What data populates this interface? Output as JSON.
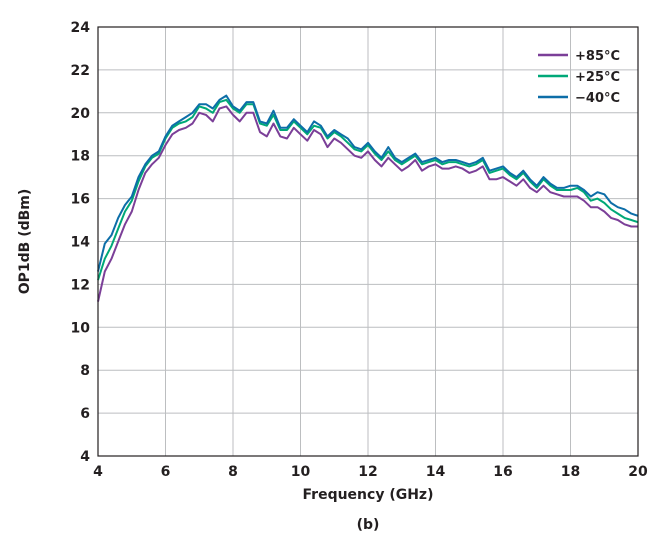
{
  "chart_data": {
    "type": "line",
    "title": "",
    "xlabel": "Frequency (GHz)",
    "ylabel": "OP1dB (dBm)",
    "caption": "(b)",
    "xlim": [
      4,
      20
    ],
    "ylim": [
      4,
      24
    ],
    "xticks": [
      "4",
      "6",
      "8",
      "10",
      "12",
      "14",
      "16",
      "18",
      "20"
    ],
    "yticks": [
      "4",
      "6",
      "8",
      "10",
      "12",
      "14",
      "16",
      "18",
      "20",
      "22",
      "24"
    ],
    "grid": true,
    "legend_position": "top-right",
    "series": [
      {
        "name": "+85°C",
        "color": "#7b3f98",
        "x": [
          4.0,
          4.2,
          4.4,
          4.6,
          4.8,
          5.0,
          5.2,
          5.4,
          5.6,
          5.8,
          6.0,
          6.2,
          6.4,
          6.6,
          6.8,
          7.0,
          7.2,
          7.4,
          7.6,
          7.8,
          8.0,
          8.2,
          8.4,
          8.6,
          8.8,
          9.0,
          9.2,
          9.4,
          9.6,
          9.8,
          10.0,
          10.2,
          10.4,
          10.6,
          10.8,
          11.0,
          11.2,
          11.4,
          11.6,
          11.8,
          12.0,
          12.2,
          12.4,
          12.6,
          12.8,
          13.0,
          13.2,
          13.4,
          13.6,
          13.8,
          14.0,
          14.2,
          14.4,
          14.6,
          14.8,
          15.0,
          15.2,
          15.4,
          15.6,
          15.8,
          16.0,
          16.2,
          16.4,
          16.6,
          16.8,
          17.0,
          17.2,
          17.4,
          17.6,
          17.8,
          18.0,
          18.2,
          18.4,
          18.6,
          18.8,
          19.0,
          19.2,
          19.4,
          19.6,
          19.8,
          20.0
        ],
        "values": [
          11.2,
          12.6,
          13.2,
          14.0,
          14.8,
          15.4,
          16.4,
          17.2,
          17.6,
          17.9,
          18.5,
          19.0,
          19.2,
          19.3,
          19.5,
          20.0,
          19.9,
          19.6,
          20.2,
          20.3,
          19.9,
          19.6,
          20.0,
          20.0,
          19.1,
          18.9,
          19.5,
          18.9,
          18.8,
          19.3,
          19.0,
          18.7,
          19.2,
          19.0,
          18.4,
          18.8,
          18.6,
          18.3,
          18.0,
          17.9,
          18.2,
          17.8,
          17.5,
          17.9,
          17.6,
          17.3,
          17.5,
          17.8,
          17.3,
          17.5,
          17.6,
          17.4,
          17.4,
          17.5,
          17.4,
          17.2,
          17.3,
          17.5,
          16.9,
          16.9,
          17.0,
          16.8,
          16.6,
          16.9,
          16.5,
          16.3,
          16.6,
          16.3,
          16.2,
          16.1,
          16.1,
          16.1,
          15.9,
          15.6,
          15.6,
          15.4,
          15.1,
          15.0,
          14.8,
          14.7,
          14.7
        ]
      },
      {
        "name": "+25°C",
        "color": "#00a878",
        "x": [
          4.0,
          4.2,
          4.4,
          4.6,
          4.8,
          5.0,
          5.2,
          5.4,
          5.6,
          5.8,
          6.0,
          6.2,
          6.4,
          6.6,
          6.8,
          7.0,
          7.2,
          7.4,
          7.6,
          7.8,
          8.0,
          8.2,
          8.4,
          8.6,
          8.8,
          9.0,
          9.2,
          9.4,
          9.6,
          9.8,
          10.0,
          10.2,
          10.4,
          10.6,
          10.8,
          11.0,
          11.2,
          11.4,
          11.6,
          11.8,
          12.0,
          12.2,
          12.4,
          12.6,
          12.8,
          13.0,
          13.2,
          13.4,
          13.6,
          13.8,
          14.0,
          14.2,
          14.4,
          14.6,
          14.8,
          15.0,
          15.2,
          15.4,
          15.6,
          15.8,
          16.0,
          16.2,
          16.4,
          16.6,
          16.8,
          17.0,
          17.2,
          17.4,
          17.6,
          17.8,
          18.0,
          18.2,
          18.4,
          18.6,
          18.8,
          19.0,
          19.2,
          19.4,
          19.6,
          19.8,
          20.0
        ],
        "values": [
          12.2,
          13.2,
          13.8,
          14.6,
          15.4,
          15.9,
          16.8,
          17.5,
          17.9,
          18.1,
          18.8,
          19.3,
          19.5,
          19.6,
          19.8,
          20.3,
          20.2,
          20.0,
          20.5,
          20.6,
          20.2,
          20.0,
          20.4,
          20.4,
          19.5,
          19.4,
          19.9,
          19.2,
          19.2,
          19.6,
          19.3,
          19.0,
          19.4,
          19.3,
          18.8,
          19.1,
          18.9,
          18.6,
          18.3,
          18.2,
          18.5,
          18.1,
          17.8,
          18.2,
          17.8,
          17.6,
          17.8,
          18.0,
          17.6,
          17.7,
          17.8,
          17.6,
          17.7,
          17.7,
          17.6,
          17.5,
          17.6,
          17.8,
          17.2,
          17.3,
          17.4,
          17.1,
          16.9,
          17.2,
          16.8,
          16.5,
          16.9,
          16.6,
          16.4,
          16.4,
          16.4,
          16.5,
          16.3,
          15.9,
          16.0,
          15.8,
          15.5,
          15.3,
          15.1,
          15.0,
          14.9
        ]
      },
      {
        "name": "−40°C",
        "color": "#0d6ea8",
        "x": [
          4.0,
          4.2,
          4.4,
          4.6,
          4.8,
          5.0,
          5.2,
          5.4,
          5.6,
          5.8,
          6.0,
          6.2,
          6.4,
          6.6,
          6.8,
          7.0,
          7.2,
          7.4,
          7.6,
          7.8,
          8.0,
          8.2,
          8.4,
          8.6,
          8.8,
          9.0,
          9.2,
          9.4,
          9.6,
          9.8,
          10.0,
          10.2,
          10.4,
          10.6,
          10.8,
          11.0,
          11.2,
          11.4,
          11.6,
          11.8,
          12.0,
          12.2,
          12.4,
          12.6,
          12.8,
          13.0,
          13.2,
          13.4,
          13.6,
          13.8,
          14.0,
          14.2,
          14.4,
          14.6,
          14.8,
          15.0,
          15.2,
          15.4,
          15.6,
          15.8,
          16.0,
          16.2,
          16.4,
          16.6,
          16.8,
          17.0,
          17.2,
          17.4,
          17.6,
          17.8,
          18.0,
          18.2,
          18.4,
          18.6,
          18.8,
          19.0,
          19.2,
          19.4,
          19.6,
          19.8,
          20.0
        ],
        "values": [
          12.6,
          13.9,
          14.3,
          15.1,
          15.7,
          16.1,
          17.0,
          17.6,
          18.0,
          18.2,
          18.9,
          19.4,
          19.6,
          19.8,
          20.0,
          20.4,
          20.4,
          20.2,
          20.6,
          20.8,
          20.3,
          20.1,
          20.5,
          20.5,
          19.6,
          19.5,
          20.1,
          19.3,
          19.3,
          19.7,
          19.4,
          19.1,
          19.6,
          19.4,
          18.9,
          19.2,
          19.0,
          18.8,
          18.4,
          18.3,
          18.6,
          18.2,
          17.9,
          18.4,
          17.9,
          17.7,
          17.9,
          18.1,
          17.7,
          17.8,
          17.9,
          17.7,
          17.8,
          17.8,
          17.7,
          17.6,
          17.7,
          17.9,
          17.3,
          17.4,
          17.5,
          17.2,
          17.0,
          17.3,
          16.9,
          16.6,
          17.0,
          16.7,
          16.5,
          16.5,
          16.6,
          16.6,
          16.4,
          16.1,
          16.3,
          16.2,
          15.8,
          15.6,
          15.5,
          15.3,
          15.2
        ]
      }
    ]
  }
}
